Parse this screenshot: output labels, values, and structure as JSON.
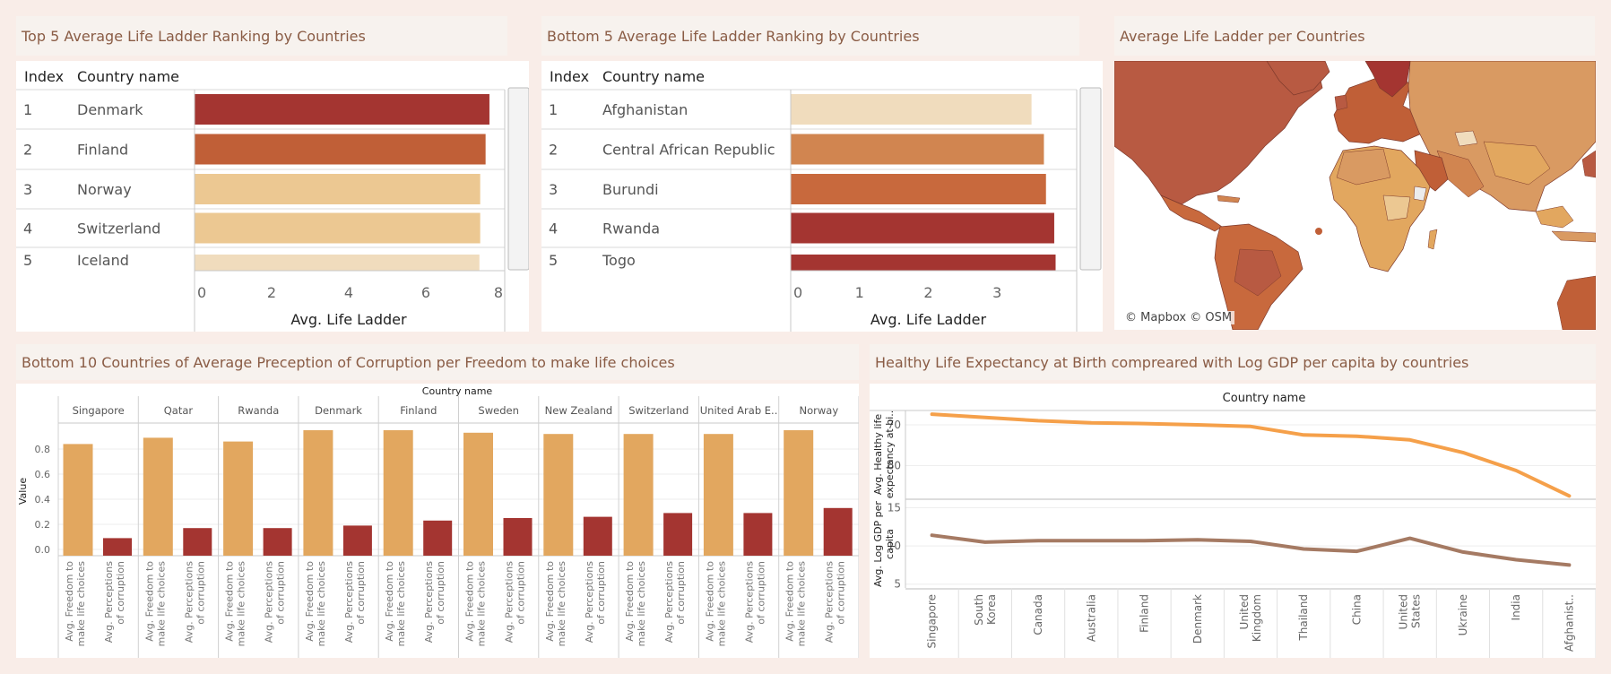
{
  "dashboard": {
    "top5_title": "Top 5 Average Life Ladder Ranking by Countries",
    "bottom5_title": "Bottom 5 Average Life Ladder Ranking by Countries",
    "map_title": "Average Life Ladder per Countries",
    "corruption_title": "Bottom 10 Countries of Average Preception of Corruption per Freedom to make life choices",
    "life_title": "Healthy Life Expectancy at Birth compreared with Log GDP per capita by countries",
    "map_attribution": "© Mapbox © OSM"
  },
  "colors": {
    "dark_red": "#a43531",
    "orange": "#c05f37",
    "med_orange": "#d18550",
    "tan": "#e2a75f",
    "pale": "#ecc892",
    "lightest": "#f0dcbd",
    "line_orange": "#f5a04a",
    "line_brown": "#a57a63"
  },
  "chart_data": [
    {
      "type": "bar",
      "orientation": "horizontal",
      "title": "Top 5 Average Life Ladder Ranking by Countries",
      "columns": [
        "Index",
        "Country name"
      ],
      "index": [
        "1",
        "2",
        "3",
        "4",
        "5"
      ],
      "categories": [
        "Denmark",
        "Finland",
        "Norway",
        "Switzerland",
        "Iceland"
      ],
      "values": [
        7.65,
        7.55,
        7.41,
        7.41,
        7.39
      ],
      "bar_colors": [
        "#a43531",
        "#c05f37",
        "#ecc892",
        "#ecc892",
        "#f0dcbd"
      ],
      "xlabel": "Avg. Life Ladder",
      "xlim": [
        0,
        8
      ],
      "xticks": [
        "0",
        "2",
        "4",
        "6",
        "8"
      ]
    },
    {
      "type": "bar",
      "orientation": "horizontal",
      "title": "Bottom 5 Average Life Ladder Ranking by Countries",
      "columns": [
        "Index",
        "Country name"
      ],
      "index": [
        "1",
        "2",
        "3",
        "4",
        "5"
      ],
      "categories": [
        "Afghanistan",
        "Central African Republic",
        "Burundi",
        "Rwanda",
        "Togo"
      ],
      "values": [
        3.5,
        3.68,
        3.71,
        3.83,
        3.85
      ],
      "bar_colors": [
        "#f0dcbd",
        "#d18550",
        "#c8693d",
        "#a43531",
        "#a43531"
      ],
      "xlabel": "Avg. Life Ladder",
      "xlim": [
        0,
        4
      ],
      "xticks": [
        "0",
        "1",
        "2",
        "3"
      ]
    },
    {
      "type": "bar",
      "title": "Bottom 10 Countries of Average Preception of Corruption per Freedom to make life choices",
      "header": "Country name",
      "ylabel": "Value",
      "ylim": [
        -0.05,
        0.95
      ],
      "yticks": [
        "0.0",
        "0.2",
        "0.4",
        "0.6",
        "0.8"
      ],
      "countries": [
        "Singapore",
        "Qatar",
        "Rwanda",
        "Denmark",
        "Finland",
        "Sweden",
        "New Zealand",
        "Switzerland",
        "United Arab E..",
        "Norway"
      ],
      "series": [
        {
          "name": "Avg. Freedom to make life choices",
          "color": "#e2a75f",
          "values": [
            0.84,
            0.89,
            0.86,
            0.95,
            0.95,
            0.93,
            0.92,
            0.92,
            0.92,
            0.95
          ]
        },
        {
          "name": "Avg. Perceptions of corruption",
          "color": "#a43531",
          "values": [
            0.09,
            0.17,
            0.17,
            0.19,
            0.23,
            0.25,
            0.26,
            0.29,
            0.29,
            0.33
          ]
        }
      ],
      "bar_label_lines": [
        [
          "Avg. Freedom to",
          "make life choices"
        ],
        [
          "Avg. Perceptions",
          "of corruption"
        ]
      ]
    },
    {
      "type": "line",
      "title": "Healthy Life Expectancy at Birth compreared with Log GDP per capita by countries",
      "header": "Country name",
      "x": [
        "Singapore",
        "South Korea",
        "Canada",
        "Australia",
        "Finland",
        "Denmark",
        "United Kingdom",
        "Thailand",
        "China",
        "United States",
        "Ukraine",
        "India",
        "Afghanist.."
      ],
      "x_label_lines": [
        [
          "Singapore"
        ],
        [
          "South",
          "Korea"
        ],
        [
          "Canada"
        ],
        [
          "Australia"
        ],
        [
          "Finland"
        ],
        [
          "Denmark"
        ],
        [
          "United",
          "Kingdom"
        ],
        [
          "Thailand"
        ],
        [
          "China"
        ],
        [
          "United",
          "States"
        ],
        [
          "Ukraine"
        ],
        [
          "India"
        ],
        [
          "Afghanist.."
        ]
      ],
      "series": [
        {
          "name": "Avg. Healthy life expectancy at bi..",
          "label_lines": [
            "Avg. Healthy life",
            "expectancy at bi.."
          ],
          "color": "#f5a04a",
          "values": [
            72.6,
            71.8,
            71.0,
            70.5,
            70.3,
            70.0,
            69.6,
            67.5,
            67.2,
            66.3,
            63.2,
            58.8,
            52.6
          ],
          "ylim": [
            52,
            73.5
          ],
          "yticks": [
            "60",
            "70"
          ]
        },
        {
          "name": "Avg. Log GDP per capita",
          "label_lines": [
            "Avg. Log GDP per",
            "capita"
          ],
          "color": "#a57a63",
          "values": [
            11.4,
            10.5,
            10.7,
            10.7,
            10.7,
            10.8,
            10.6,
            9.6,
            9.3,
            11.0,
            9.2,
            8.2,
            7.5
          ],
          "ylim": [
            4.5,
            16
          ],
          "yticks": [
            "5",
            "10",
            "15"
          ]
        }
      ]
    }
  ]
}
